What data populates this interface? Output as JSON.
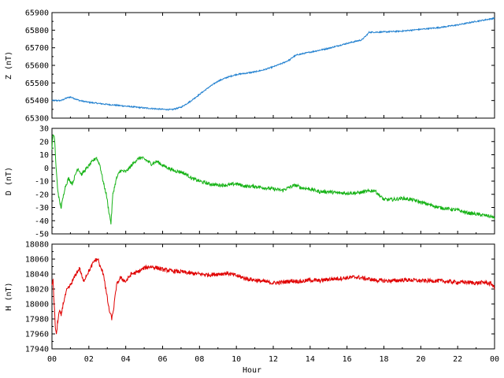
{
  "chart_data": [
    {
      "type": "line",
      "ylabel": "Z (nT)",
      "ylim": [
        65300,
        65900
      ],
      "yticks": [
        65300,
        65400,
        65500,
        65600,
        65700,
        65800,
        65900
      ],
      "xlim": [
        0,
        24
      ],
      "color": "#1f7fcf",
      "series": [
        {
          "x": [
            0,
            0.5,
            0.8,
            1.0,
            1.5,
            2,
            3,
            4,
            5,
            6,
            6.5,
            7,
            7.5,
            8,
            8.5,
            9,
            9.5,
            10,
            10.5,
            11,
            11.5,
            12,
            12.5,
            12.9,
            13.1,
            13.3,
            14,
            15,
            16,
            16.8,
            17,
            17.2,
            18,
            19,
            20,
            21,
            22,
            23,
            24
          ],
          "values": [
            65400,
            65400,
            65415,
            65420,
            65400,
            65390,
            65378,
            65368,
            65358,
            65350,
            65348,
            65362,
            65395,
            65435,
            65475,
            65510,
            65532,
            65548,
            65555,
            65563,
            65575,
            65592,
            65612,
            65632,
            65650,
            65660,
            65675,
            65697,
            65725,
            65745,
            65765,
            65788,
            65790,
            65795,
            65805,
            65815,
            65830,
            65850,
            65868
          ]
        }
      ]
    },
    {
      "type": "line",
      "ylabel": "D (nT)",
      "ylim": [
        -50,
        30
      ],
      "yticks": [
        -50,
        -40,
        -30,
        -20,
        -10,
        0,
        10,
        20,
        30
      ],
      "xlim": [
        0,
        24
      ],
      "color": "#17b317",
      "series": [
        {
          "x": [
            0,
            0.05,
            0.15,
            0.2,
            0.3,
            0.4,
            0.5,
            0.7,
            0.9,
            1.1,
            1.4,
            1.6,
            1.9,
            2.2,
            2.4,
            2.6,
            2.8,
            2.95,
            3.05,
            3.2,
            3.3,
            3.5,
            3.7,
            4.0,
            4.2,
            4.5,
            4.8,
            5.1,
            5.4,
            5.7,
            6.0,
            6.3,
            6.6,
            7.0,
            7.3,
            7.6,
            8,
            8.5,
            9,
            9.5,
            10,
            10.5,
            11,
            11.5,
            12,
            12.5,
            13,
            13.2,
            13.5,
            14,
            14.5,
            15,
            15.5,
            16,
            16.5,
            17,
            17.5,
            17.7,
            18,
            18.5,
            19,
            19.5,
            20,
            20.5,
            21,
            21.5,
            22,
            22.5,
            23,
            23.5,
            23.9,
            24
          ],
          "values": [
            15,
            25,
            22,
            5,
            -15,
            -25,
            -30,
            -15,
            -8,
            -12,
            0,
            -5,
            0,
            5,
            8,
            2,
            -12,
            -20,
            -30,
            -42,
            -20,
            -8,
            -2,
            -3,
            0,
            5,
            8,
            6,
            3,
            5,
            2,
            0,
            -2,
            -3,
            -5,
            -8,
            -10,
            -12,
            -13,
            -13,
            -12,
            -14,
            -14,
            -15,
            -16,
            -17,
            -14,
            -13,
            -15,
            -16,
            -18,
            -18,
            -19,
            -19,
            -19,
            -18,
            -17,
            -20,
            -24,
            -24,
            -23,
            -24,
            -26,
            -28,
            -30,
            -31,
            -32,
            -34,
            -35,
            -36,
            -37,
            -39
          ]
        }
      ]
    },
    {
      "type": "line",
      "ylabel": "H (nT)",
      "ylim": [
        17940,
        18080
      ],
      "yticks": [
        17940,
        17960,
        17980,
        18000,
        18020,
        18040,
        18060,
        18080
      ],
      "xlim": [
        0,
        24
      ],
      "color": "#e00000",
      "series": [
        {
          "x": [
            0,
            0.05,
            0.12,
            0.18,
            0.25,
            0.3,
            0.4,
            0.5,
            0.6,
            0.8,
            1.0,
            1.3,
            1.5,
            1.7,
            1.9,
            2.1,
            2.3,
            2.5,
            2.6,
            2.8,
            2.95,
            3.1,
            3.25,
            3.35,
            3.5,
            3.7,
            4.0,
            4.3,
            4.6,
            5.0,
            5.3,
            5.6,
            6.0,
            6.5,
            7,
            7.5,
            8,
            8.5,
            9,
            9.5,
            10,
            10.5,
            11,
            11.5,
            12,
            12.5,
            13,
            13.5,
            14,
            14.5,
            15,
            15.5,
            16,
            16.5,
            17,
            17.5,
            18,
            18.5,
            19,
            19.5,
            20,
            20.5,
            21,
            21.5,
            22,
            22.5,
            23,
            23.5,
            23.9,
            24
          ],
          "values": [
            18025,
            18035,
            18000,
            17970,
            17958,
            17975,
            17990,
            17985,
            18000,
            18018,
            18025,
            18040,
            18048,
            18030,
            18040,
            18048,
            18058,
            18060,
            18050,
            18040,
            18015,
            17992,
            17980,
            17995,
            18025,
            18035,
            18030,
            18040,
            18042,
            18048,
            18050,
            18049,
            18046,
            18044,
            18043,
            18041,
            18040,
            18039,
            18040,
            18041,
            18038,
            18034,
            18032,
            18030,
            18028,
            18029,
            18031,
            18030,
            18032,
            18031,
            18033,
            18034,
            18035,
            18036,
            18034,
            18032,
            18031,
            18031,
            18032,
            18032,
            18031,
            18031,
            18031,
            18030,
            18029,
            18029,
            18028,
            18029,
            18026,
            18020
          ]
        }
      ]
    }
  ],
  "xaxis": {
    "xlabel": "Hour",
    "tick_labels": [
      "00",
      "02",
      "04",
      "06",
      "08",
      "10",
      "12",
      "14",
      "16",
      "18",
      "20",
      "22",
      "00"
    ]
  }
}
